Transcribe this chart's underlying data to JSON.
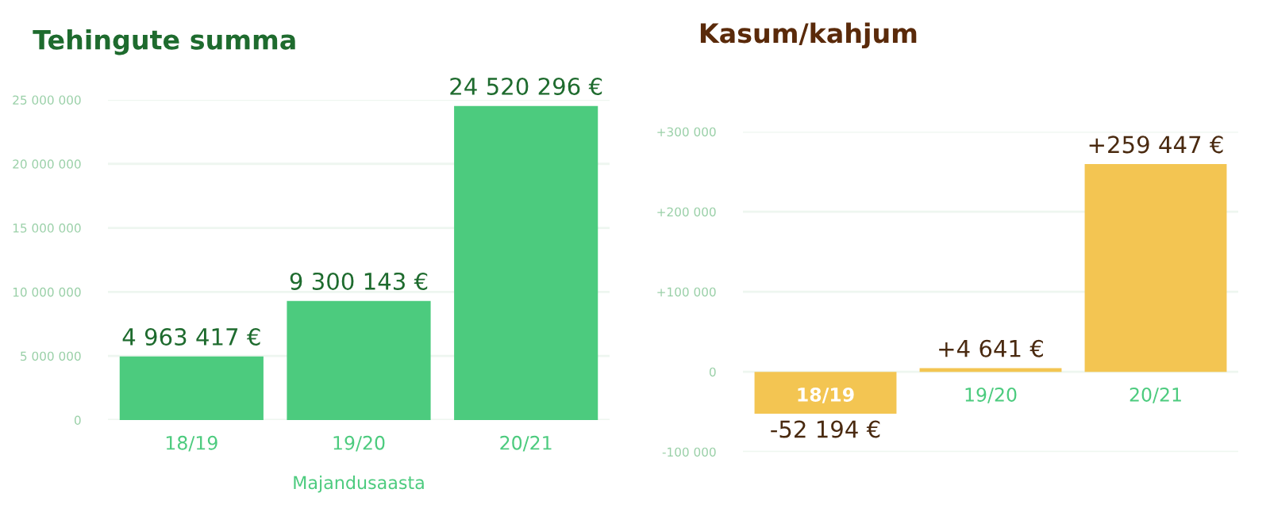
{
  "chart_data": [
    {
      "type": "bar",
      "title": "Tehingute summa",
      "xlabel": "Majandusaasta",
      "categories": [
        "18/19",
        "19/20",
        "20/21"
      ],
      "series": [
        {
          "color": "#4ccb7e",
          "values": [
            4963417,
            9300143,
            24520296
          ],
          "value_labels": [
            "4 963 417 €",
            "9 300 143 €",
            "24 520 296 €"
          ]
        }
      ],
      "ylim": [
        0,
        25000000
      ],
      "yticks": [
        0,
        {
          "value": 5000000,
          "label": "5 000 000"
        },
        {
          "value": 10000000,
          "label": "10 000 000"
        },
        {
          "value": 15000000,
          "label": "15 000 000"
        },
        {
          "value": 20000000,
          "label": "20 000 000"
        },
        {
          "value": 25000000,
          "label": "25 000 000"
        }
      ],
      "grid": "y",
      "legend": false
    },
    {
      "type": "bar",
      "title": "Kasum/kahjum",
      "categories": [
        "18/19",
        "19/20",
        "20/21"
      ],
      "series": [
        {
          "color": "#f3c552",
          "values": [
            -52194,
            4641,
            259447
          ],
          "value_labels": [
            "-52 194 €",
            "+4 641 €",
            "+259 447 €"
          ]
        }
      ],
      "ylim": [
        -100000,
        300000
      ],
      "yticks": [
        {
          "value": -100000,
          "label": "-100 000"
        },
        0,
        {
          "value": 100000,
          "label": "+100 000"
        },
        {
          "value": 200000,
          "label": "+200 000"
        },
        {
          "value": 300000,
          "label": "+300 000"
        }
      ],
      "grid": "y",
      "legend": false
    }
  ]
}
